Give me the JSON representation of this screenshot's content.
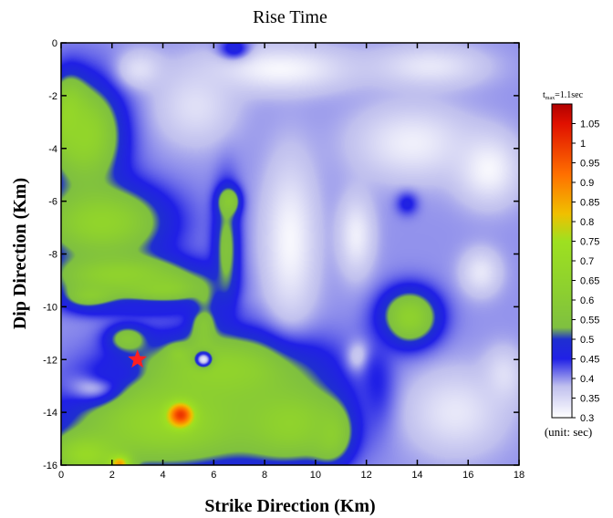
{
  "chart_data": {
    "type": "heatmap",
    "title": "Rise Time",
    "xlabel": "Strike Direction (Km)",
    "ylabel": "Dip Direction (Km)",
    "xlim": [
      0,
      18
    ],
    "ylim": [
      -16,
      0
    ],
    "x_ticks": [
      0,
      2,
      4,
      6,
      8,
      10,
      12,
      14,
      16,
      18
    ],
    "y_ticks": [
      0,
      -2,
      -4,
      -6,
      -8,
      -10,
      -12,
      -14,
      -16
    ],
    "x_tick_labels": [
      "0",
      "2",
      "4",
      "6",
      "8",
      "10",
      "12",
      "14",
      "16",
      "18"
    ],
    "y_tick_labels": [
      "0",
      "-2",
      "-4",
      "-6",
      "-8",
      "-10",
      "-12",
      "-14",
      "-16"
    ],
    "colorbar": {
      "header_main": "t",
      "header_sub": "max",
      "header_rest": "=1.1sec",
      "unit_label": "(unit: sec)",
      "range": [
        0.3,
        1.1
      ],
      "ticks": [
        1.05,
        1.0,
        0.95,
        0.9,
        0.85,
        0.8,
        0.75,
        0.7,
        0.65,
        0.6,
        0.55,
        0.5,
        0.45,
        0.4,
        0.35,
        0.3
      ],
      "tick_labels": [
        "1.05",
        "1",
        "0.95",
        "0.9",
        "0.85",
        "0.8",
        "0.75",
        "0.7",
        "0.65",
        "0.6",
        "0.55",
        "0.5",
        "0.45",
        "0.4",
        "0.35",
        "0.3"
      ],
      "stops": [
        {
          "v": 0.3,
          "color": "#ffffff"
        },
        {
          "v": 0.38,
          "color": "#c0c0ee"
        },
        {
          "v": 0.45,
          "color": "#2020e6"
        },
        {
          "v": 0.5,
          "color": "#1f2fd0"
        },
        {
          "v": 0.53,
          "color": "#7fc040"
        },
        {
          "v": 0.62,
          "color": "#8ccf30"
        },
        {
          "v": 0.75,
          "color": "#9ee020"
        },
        {
          "v": 0.82,
          "color": "#f0c000"
        },
        {
          "v": 0.92,
          "color": "#ff7000"
        },
        {
          "v": 1.05,
          "color": "#e01000"
        },
        {
          "v": 1.1,
          "color": "#b00000"
        }
      ]
    },
    "hypocenter": {
      "x": 3.0,
      "y": -12.0,
      "marker": "star",
      "color": "#ff2020"
    },
    "base_value": 0.4,
    "features": [
      {
        "type": "ellipse",
        "cx": 1.0,
        "cy": -3.5,
        "rx": 1.6,
        "ry": 2.2,
        "v": 0.66
      },
      {
        "type": "ellipse",
        "cx": 0.3,
        "cy": -2.8,
        "rx": 0.8,
        "ry": 1.6,
        "v": 0.68
      },
      {
        "type": "ellipse",
        "cx": 1.6,
        "cy": -6.8,
        "rx": 2.8,
        "ry": 1.6,
        "v": 0.66
      },
      {
        "type": "ellipse",
        "cx": 2.3,
        "cy": -8.8,
        "rx": 3.0,
        "ry": 0.9,
        "v": 0.65
      },
      {
        "type": "ellipse",
        "cx": 4.0,
        "cy": -9.3,
        "rx": 2.0,
        "ry": 0.7,
        "v": 0.63
      },
      {
        "type": "ellipse",
        "cx": 1.2,
        "cy": -9.6,
        "rx": 1.2,
        "ry": 0.6,
        "v": 0.62
      },
      {
        "type": "ellipse",
        "cx": 2.6,
        "cy": -11.2,
        "rx": 0.9,
        "ry": 0.6,
        "v": 0.56
      },
      {
        "type": "ellipse",
        "cx": 4.6,
        "cy": -11.8,
        "rx": 0.5,
        "ry": 0.4,
        "v": 0.56
      },
      {
        "type": "ellipse",
        "cx": 5.6,
        "cy": -10.5,
        "rx": 0.6,
        "ry": 1.6,
        "v": 0.57
      },
      {
        "type": "ellipse",
        "cx": 6.5,
        "cy": -7.8,
        "rx": 0.6,
        "ry": 2.6,
        "v": 0.55
      },
      {
        "type": "ellipse",
        "cx": 6.6,
        "cy": -6.0,
        "rx": 0.5,
        "ry": 0.6,
        "v": 0.6
      },
      {
        "type": "ellipse",
        "cx": 6.4,
        "cy": -12.4,
        "rx": 4.0,
        "ry": 1.6,
        "v": 0.65
      },
      {
        "type": "ellipse",
        "cx": 4.2,
        "cy": -14.4,
        "rx": 4.2,
        "ry": 1.9,
        "v": 0.68
      },
      {
        "type": "ellipse",
        "cx": 9.0,
        "cy": -14.4,
        "rx": 2.4,
        "ry": 1.7,
        "v": 0.65
      },
      {
        "type": "ellipse",
        "cx": 10.6,
        "cy": -14.8,
        "rx": 0.9,
        "ry": 1.2,
        "v": 0.62
      },
      {
        "type": "ellipse",
        "cx": 1.0,
        "cy": -15.6,
        "rx": 1.6,
        "ry": 0.9,
        "v": 0.7
      },
      {
        "type": "ellipse",
        "cx": 13.7,
        "cy": -10.4,
        "rx": 1.3,
        "ry": 1.2,
        "v": 0.64
      },
      {
        "type": "ellipse",
        "cx": 4.7,
        "cy": -14.1,
        "rx": 0.6,
        "ry": 0.55,
        "v": 1.0
      },
      {
        "type": "ellipse",
        "cx": 2.3,
        "cy": -15.95,
        "rx": 0.5,
        "ry": 0.4,
        "v": 0.86
      },
      {
        "type": "ellipse",
        "cx": 9.0,
        "cy": -7.5,
        "rx": 1.2,
        "ry": 3.5,
        "v": 0.31
      },
      {
        "type": "ellipse",
        "cx": 11.6,
        "cy": -7.3,
        "rx": 0.8,
        "ry": 1.7,
        "v": 0.32
      },
      {
        "type": "ellipse",
        "cx": 13.8,
        "cy": -3.8,
        "rx": 2.6,
        "ry": 1.6,
        "v": 0.32
      },
      {
        "type": "ellipse",
        "cx": 16.8,
        "cy": -4.8,
        "rx": 1.4,
        "ry": 1.5,
        "v": 0.31
      },
      {
        "type": "ellipse",
        "cx": 8.6,
        "cy": -1.0,
        "rx": 3.2,
        "ry": 1.0,
        "v": 0.31
      },
      {
        "type": "ellipse",
        "cx": 5.3,
        "cy": -2.4,
        "rx": 1.8,
        "ry": 1.7,
        "v": 0.34
      },
      {
        "type": "ellipse",
        "cx": 3.1,
        "cy": -1.0,
        "rx": 1.0,
        "ry": 0.8,
        "v": 0.34
      },
      {
        "type": "ellipse",
        "cx": 14.5,
        "cy": -0.9,
        "rx": 2.5,
        "ry": 0.9,
        "v": 0.33
      },
      {
        "type": "ellipse",
        "cx": 16.5,
        "cy": -8.7,
        "rx": 0.9,
        "ry": 1.0,
        "v": 0.33
      },
      {
        "type": "ellipse",
        "cx": 15.5,
        "cy": -14.0,
        "rx": 2.2,
        "ry": 1.8,
        "v": 0.33
      },
      {
        "type": "ellipse",
        "cx": 17.4,
        "cy": -12.6,
        "rx": 0.9,
        "ry": 1.2,
        "v": 0.34
      },
      {
        "type": "ellipse",
        "cx": 11.8,
        "cy": -11.9,
        "rx": 0.6,
        "ry": 0.7,
        "v": 0.34
      },
      {
        "type": "ellipse",
        "cx": 5.6,
        "cy": -12.0,
        "rx": 0.4,
        "ry": 0.35,
        "v": 0.33
      },
      {
        "type": "ellipse",
        "cx": 1.2,
        "cy": -13.0,
        "rx": 1.2,
        "ry": 0.7,
        "v": 0.38
      },
      {
        "type": "ellipse",
        "cx": 6.8,
        "cy": -0.2,
        "rx": 0.7,
        "ry": 0.5,
        "v": 0.47
      },
      {
        "type": "ellipse",
        "cx": 2.0,
        "cy": -12.5,
        "rx": 1.3,
        "ry": 0.5,
        "v": 0.46
      },
      {
        "type": "ellipse",
        "cx": 3.3,
        "cy": -10.1,
        "rx": 3.0,
        "ry": 0.4,
        "v": 0.46
      },
      {
        "type": "ellipse",
        "cx": 13.6,
        "cy": -6.1,
        "rx": 0.5,
        "ry": 0.5,
        "v": 0.46
      },
      {
        "type": "ellipse",
        "cx": 12.4,
        "cy": -12.8,
        "rx": 0.8,
        "ry": 2.0,
        "v": 0.45
      }
    ]
  }
}
